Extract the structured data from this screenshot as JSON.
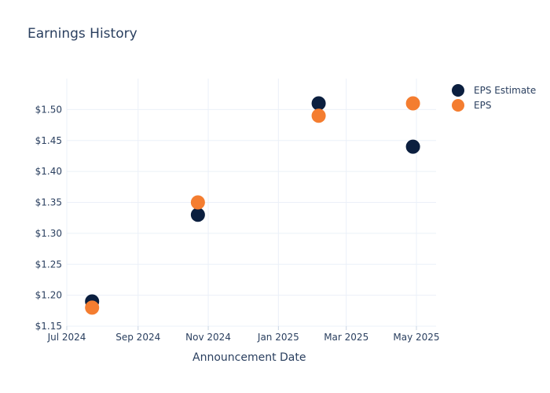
{
  "chart_data": {
    "type": "scatter",
    "title": "Earnings History",
    "xlabel": "Announcement Date",
    "ylabel": "",
    "x_ticks": [
      "Jul 2024",
      "Sep 2024",
      "Nov 2024",
      "Jan 2025",
      "Mar 2025",
      "May 2025"
    ],
    "y_ticks": [
      "$1.15",
      "$1.20",
      "$1.25",
      "$1.30",
      "$1.35",
      "$1.40",
      "$1.45",
      "$1.50"
    ],
    "ylim": [
      1.15,
      1.55
    ],
    "grid": true,
    "legend_position": "top-right",
    "series": [
      {
        "name": "EPS Estimate",
        "color": "#0b1f3f",
        "points": [
          {
            "x": "2024-07-23",
            "y": 1.19
          },
          {
            "x": "2024-10-23",
            "y": 1.33
          },
          {
            "x": "2025-02-05",
            "y": 1.51
          },
          {
            "x": "2025-04-28",
            "y": 1.44
          }
        ]
      },
      {
        "name": "EPS",
        "color": "#f47d30",
        "points": [
          {
            "x": "2024-07-23",
            "y": 1.18
          },
          {
            "x": "2024-10-23",
            "y": 1.35
          },
          {
            "x": "2025-02-05",
            "y": 1.49
          },
          {
            "x": "2025-04-28",
            "y": 1.51
          }
        ]
      }
    ]
  }
}
